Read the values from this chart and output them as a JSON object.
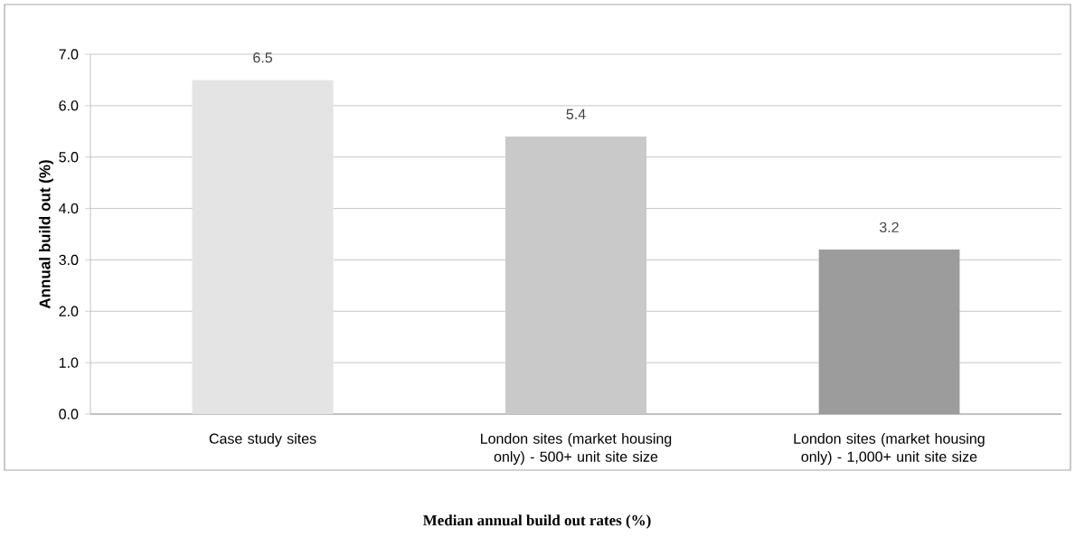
{
  "chart_data": {
    "type": "bar",
    "ylabel": "Annual build out (%)",
    "categories": [
      "Case study sites",
      "London sites (market housing only) - 500+ unit site size",
      "London sites (market housing only) - 1,000+ unit site size"
    ],
    "values": [
      6.5,
      5.4,
      3.2
    ],
    "colors": [
      "#e4e4e4",
      "#c9c9c9",
      "#9c9c9c"
    ],
    "ylim": [
      0,
      7
    ],
    "yticks": [
      {
        "value": 0,
        "label": "0.0"
      },
      {
        "value": 1,
        "label": "1.0"
      },
      {
        "value": 2,
        "label": "2.0"
      },
      {
        "value": 3,
        "label": "3.0"
      },
      {
        "value": 4,
        "label": "4.0"
      },
      {
        "value": 5,
        "label": "5.0"
      },
      {
        "value": 6,
        "label": "6.0"
      },
      {
        "value": 7,
        "label": "7.0"
      }
    ],
    "grid": "y",
    "data_labels": true,
    "annotations": [
      "Median annual build out rates (%)"
    ]
  }
}
